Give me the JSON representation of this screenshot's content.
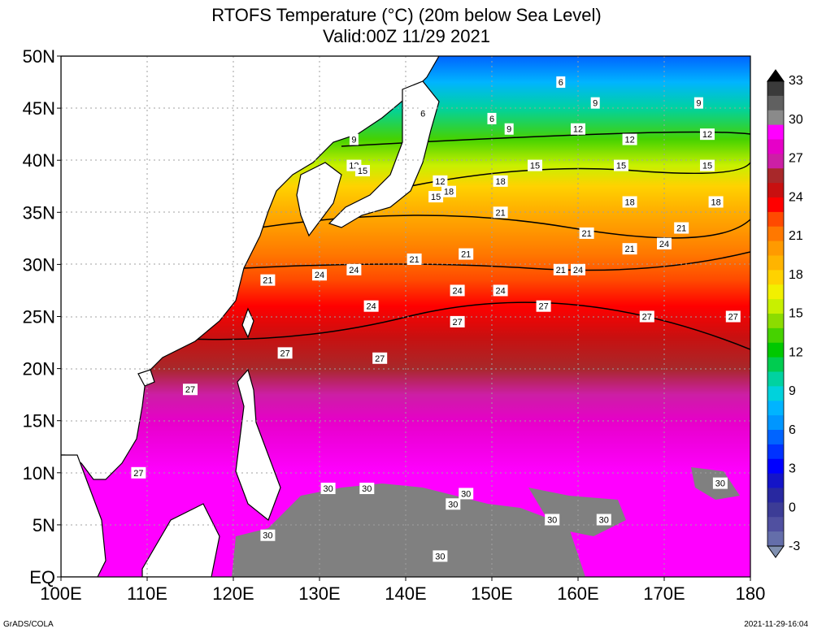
{
  "title": {
    "line1": "RTOFS Temperature (°C) (20m below Sea Level)",
    "line2": "Valid:00Z 11/29 2021"
  },
  "axes": {
    "lat_labels": [
      "50N",
      "45N",
      "40N",
      "35N",
      "30N",
      "25N",
      "20N",
      "15N",
      "10N",
      "5N",
      "EQ"
    ],
    "lon_labels": [
      "100E",
      "110E",
      "120E",
      "130E",
      "140E",
      "150E",
      "160E",
      "170E",
      "180"
    ],
    "lat_range": [
      0,
      50
    ],
    "lon_range": [
      100,
      180
    ],
    "grid": true
  },
  "colorbar": {
    "labels": [
      "33",
      "30",
      "27",
      "24",
      "21",
      "18",
      "15",
      "12",
      "9",
      "6",
      "3",
      "0",
      "-3"
    ],
    "colors": [
      "#3a3a3a",
      "#606060",
      "#8a8a8a",
      "#ff00ff",
      "#e600c8",
      "#cc1fa5",
      "#a8282a",
      "#c81010",
      "#ff0000",
      "#ff4a00",
      "#ff7800",
      "#ff9a00",
      "#ffb400",
      "#ffd200",
      "#f2f000",
      "#c8f000",
      "#8cdc00",
      "#46d200",
      "#00c800",
      "#00cc50",
      "#00d2a0",
      "#00d2dc",
      "#00b4ff",
      "#0096ff",
      "#0064ff",
      "#0032ff",
      "#0000ff",
      "#1414c8",
      "#2828a0",
      "#3c3c96",
      "#5050a0",
      "#646eaa"
    ]
  },
  "contour_labels": [
    {
      "text": "6",
      "lon": 158,
      "lat": 47.5
    },
    {
      "text": "6",
      "lon": 142,
      "lat": 44.5
    },
    {
      "text": "6",
      "lon": 150,
      "lat": 44
    },
    {
      "text": "9",
      "lon": 134,
      "lat": 42
    },
    {
      "text": "9",
      "lon": 152,
      "lat": 43
    },
    {
      "text": "9",
      "lon": 162,
      "lat": 45.5
    },
    {
      "text": "9",
      "lon": 174,
      "lat": 45.5
    },
    {
      "text": "12",
      "lon": 134,
      "lat": 39.5
    },
    {
      "text": "12",
      "lon": 144,
      "lat": 38
    },
    {
      "text": "12",
      "lon": 160,
      "lat": 43
    },
    {
      "text": "12",
      "lon": 166,
      "lat": 42
    },
    {
      "text": "12",
      "lon": 175,
      "lat": 42.5
    },
    {
      "text": "15",
      "lon": 135,
      "lat": 39
    },
    {
      "text": "15",
      "lon": 143.5,
      "lat": 36.5
    },
    {
      "text": "15",
      "lon": 155,
      "lat": 39.5
    },
    {
      "text": "15",
      "lon": 165,
      "lat": 39.5
    },
    {
      "text": "15",
      "lon": 175,
      "lat": 39.5
    },
    {
      "text": "18",
      "lon": 145,
      "lat": 37
    },
    {
      "text": "18",
      "lon": 151,
      "lat": 38
    },
    {
      "text": "18",
      "lon": 166,
      "lat": 36
    },
    {
      "text": "18",
      "lon": 170,
      "lat": 32
    },
    {
      "text": "18",
      "lon": 176,
      "lat": 36
    },
    {
      "text": "21",
      "lon": 124,
      "lat": 28.5
    },
    {
      "text": "21",
      "lon": 141,
      "lat": 30.5
    },
    {
      "text": "21",
      "lon": 147,
      "lat": 31
    },
    {
      "text": "21",
      "lon": 151,
      "lat": 35
    },
    {
      "text": "21",
      "lon": 158,
      "lat": 29.5
    },
    {
      "text": "21",
      "lon": 161,
      "lat": 33
    },
    {
      "text": "21",
      "lon": 166,
      "lat": 31.5
    },
    {
      "text": "21",
      "lon": 172,
      "lat": 33.5
    },
    {
      "text": "24",
      "lon": 130,
      "lat": 29
    },
    {
      "text": "24",
      "lon": 134,
      "lat": 29.5
    },
    {
      "text": "24",
      "lon": 136,
      "lat": 26
    },
    {
      "text": "24",
      "lon": 146,
      "lat": 27.5
    },
    {
      "text": "24",
      "lon": 151,
      "lat": 27.5
    },
    {
      "text": "24",
      "lon": 160,
      "lat": 29.5
    },
    {
      "text": "24",
      "lon": 170,
      "lat": 32
    },
    {
      "text": "27",
      "lon": 126,
      "lat": 21.5
    },
    {
      "text": "27",
      "lon": 137,
      "lat": 21
    },
    {
      "text": "27",
      "lon": 146,
      "lat": 24.5
    },
    {
      "text": "27",
      "lon": 156,
      "lat": 26
    },
    {
      "text": "27",
      "lon": 168,
      "lat": 25
    },
    {
      "text": "27",
      "lon": 178,
      "lat": 25
    },
    {
      "text": "27",
      "lon": 115,
      "lat": 18
    },
    {
      "text": "27",
      "lon": 109,
      "lat": 10
    },
    {
      "text": "30",
      "lon": 131,
      "lat": 8.5
    },
    {
      "text": "30",
      "lon": 135.5,
      "lat": 8.5
    },
    {
      "text": "30",
      "lon": 145.5,
      "lat": 7
    },
    {
      "text": "30",
      "lon": 147,
      "lat": 8
    },
    {
      "text": "30",
      "lon": 157,
      "lat": 5.5
    },
    {
      "text": "30",
      "lon": 163,
      "lat": 5.5
    },
    {
      "text": "30",
      "lon": 124,
      "lat": 4
    },
    {
      "text": "30",
      "lon": 144,
      "lat": 2
    },
    {
      "text": "30",
      "lon": 176.5,
      "lat": 9
    }
  ],
  "footer": {
    "left": "GrADS/COLA",
    "right": "2021-11-29-16:04"
  }
}
